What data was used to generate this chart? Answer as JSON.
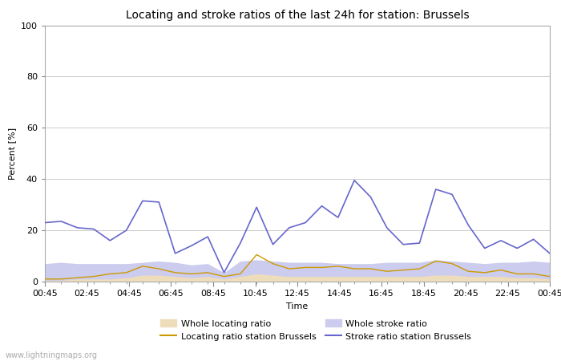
{
  "title": "Locating and stroke ratios of the last 24h for station: Brussels",
  "xlabel": "Time",
  "ylabel": "Percent [%]",
  "ylim": [
    0,
    100
  ],
  "yticks": [
    0,
    20,
    40,
    60,
    80,
    100
  ],
  "watermark": "www.lightningmaps.org",
  "x_labels": [
    "00:45",
    "02:45",
    "04:45",
    "06:45",
    "08:45",
    "10:45",
    "12:45",
    "14:45",
    "16:45",
    "18:45",
    "20:45",
    "22:45",
    "00:45"
  ],
  "stroke_ratio_brussels": [
    23,
    23.5,
    21,
    20.5,
    16,
    20,
    31.5,
    31,
    11,
    14,
    17.5,
    3.5,
    15,
    29,
    14.5,
    21,
    23,
    29.5,
    25,
    39.5,
    33,
    21,
    14.5,
    15,
    36,
    34,
    22,
    13,
    16,
    13,
    16.5,
    11
  ],
  "locating_ratio_brussels": [
    1,
    1,
    1.5,
    2,
    3,
    3.5,
    6,
    5,
    3.5,
    3,
    3.5,
    2,
    3,
    10.5,
    7,
    5,
    5.5,
    5.5,
    6,
    5,
    5,
    4,
    4.5,
    5,
    8,
    7,
    4,
    3.5,
    4.5,
    3,
    3,
    2
  ],
  "whole_stroke_ratio": [
    7,
    7.5,
    7,
    7,
    7,
    7,
    7.5,
    8,
    7.5,
    6.5,
    7,
    3.5,
    8,
    8.5,
    8,
    7.5,
    7.5,
    7.5,
    7,
    7,
    7,
    7.5,
    7.5,
    7.5,
    8.5,
    8,
    7.5,
    7,
    7.5,
    7.5,
    8,
    7.5
  ],
  "whole_locating_ratio": [
    0.5,
    0.5,
    1,
    1,
    1,
    1.5,
    2.5,
    2.5,
    2,
    1.5,
    2,
    1,
    2,
    3,
    2.5,
    2,
    2,
    2,
    2,
    2,
    2,
    2,
    2,
    2,
    2.5,
    2.5,
    2,
    2,
    2,
    1.5,
    1.5,
    1
  ],
  "color_stroke_brussels": "#6666cc",
  "color_locating_brussels": "#cc9900",
  "color_whole_stroke_fill": "#ccccee",
  "color_whole_locating_fill": "#eeddbb",
  "background_color": "#ffffff",
  "grid_color": "#cccccc",
  "title_fontsize": 10,
  "label_fontsize": 8,
  "tick_fontsize": 8
}
